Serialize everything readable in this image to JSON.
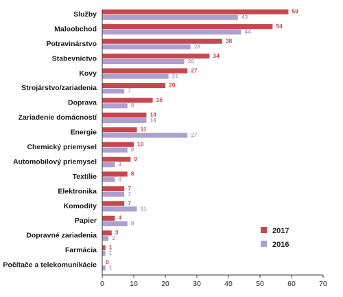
{
  "chart_data": {
    "type": "bar",
    "orientation": "horizontal",
    "categories": [
      "Služby",
      "Maloobchod",
      "Potravinárstvo",
      "Stabevníctvo",
      "Kovy",
      "Strojárstvo/zariadenia",
      "Doprava",
      "Zariadenie domácností",
      "Energie",
      "Chemický priemysel",
      "Automobilový priemysel",
      "Textílie",
      "Elektronika",
      "Komodity",
      "Papier",
      "Dopravné zariadenia",
      "Farmácia",
      "Počítače a telekomunikácie"
    ],
    "series": [
      {
        "name": "2017",
        "color": "#c8474d",
        "values": [
          59,
          54,
          38,
          34,
          27,
          20,
          16,
          14,
          11,
          10,
          9,
          8,
          7,
          7,
          4,
          3,
          1,
          0
        ]
      },
      {
        "name": "2016",
        "color": "#ad9fd2",
        "values": [
          43,
          44,
          28,
          26,
          21,
          7,
          8,
          14,
          27,
          8,
          4,
          4,
          7,
          11,
          8,
          2,
          1,
          1
        ]
      }
    ],
    "xlim": [
      0,
      70
    ],
    "x_ticks": [
      "0",
      "10",
      "20",
      "30",
      "40",
      "50",
      "60",
      "70"
    ],
    "grid": false,
    "legend_position": "bottom-right",
    "title": "",
    "xlabel": "",
    "ylabel": ""
  }
}
